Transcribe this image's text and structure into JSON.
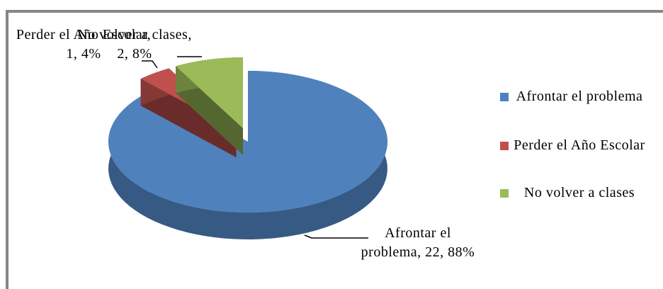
{
  "chart_data": {
    "type": "pie3d",
    "categories": [
      "Afrontar el problema",
      "Perder el Año Escolar",
      "No volver a clases"
    ],
    "values": [
      22,
      1,
      2
    ],
    "value_labels": [
      "Afrontar el problema, 22, 88%",
      "Perder el Año Escolar, 1, 4%",
      "No volver a clases, 2, 8%"
    ],
    "colors": [
      "#4f81bd",
      "#c0504d",
      "#9bbb59"
    ],
    "legend": "right"
  }
}
